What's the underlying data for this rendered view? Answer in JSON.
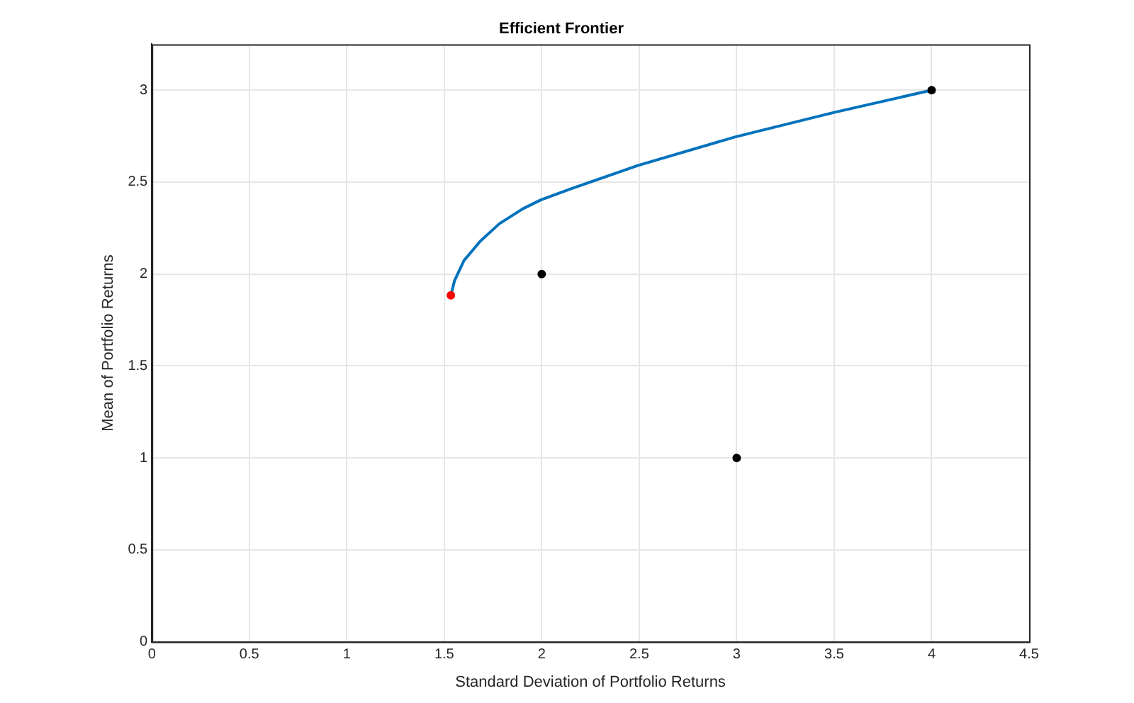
{
  "chart_data": {
    "type": "line",
    "title": "Efficient Frontier",
    "xlabel": "Standard Deviation of Portfolio Returns",
    "ylabel": "Mean of Portfolio Returns",
    "xlim": [
      0,
      4.5
    ],
    "xticks": [
      0,
      0.5,
      1,
      1.5,
      2,
      2.5,
      3,
      3.5,
      4,
      4.5
    ],
    "ylim": [
      0,
      3.25
    ],
    "yticks": [
      0,
      0.5,
      1,
      1.5,
      2,
      2.5,
      3
    ],
    "grid": true,
    "legend": false,
    "series": [
      {
        "color": "#0072bd",
        "marker": "none",
        "line_style": "solid",
        "x": [
          1.534,
          1.553,
          1.601,
          1.686,
          1.783,
          1.903,
          1.995,
          2.145,
          2.495,
          2.99,
          3.5,
          4
        ],
        "values": [
          1.884,
          1.965,
          2.073,
          2.18,
          2.274,
          2.355,
          2.403,
          2.462,
          2.591,
          2.745,
          2.879,
          3
        ]
      },
      {
        "type": "scatter",
        "color": "#000000",
        "marker": "circle",
        "x": [
          2,
          3,
          4
        ],
        "values": [
          2,
          1,
          3
        ]
      },
      {
        "type": "scatter",
        "color": "#ff0000",
        "marker": "circle",
        "x": [
          1.534
        ],
        "values": [
          1.884
        ]
      }
    ]
  }
}
